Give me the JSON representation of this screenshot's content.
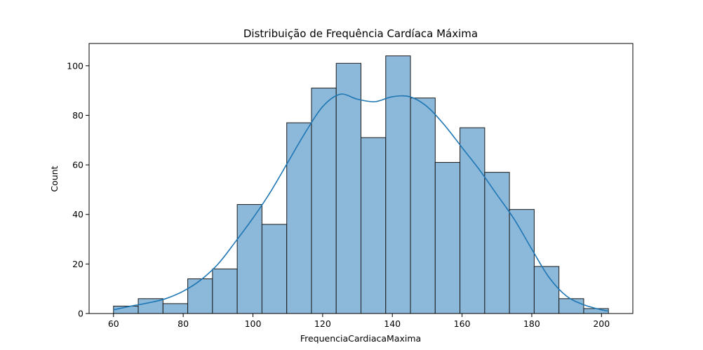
{
  "chart_data": {
    "type": "bar",
    "subtype": "histogram",
    "title": "Distribuição de Frequência Cardíaca Máxima",
    "xlabel": "FrequenciaCardiacaMaxima",
    "ylabel": "Count",
    "xlim": [
      53,
      209
    ],
    "ylim": [
      0,
      109
    ],
    "xticks": [
      60,
      80,
      100,
      120,
      140,
      160,
      180,
      200
    ],
    "yticks": [
      0,
      20,
      40,
      60,
      80,
      100
    ],
    "bin_edges": [
      60,
      67.1,
      74.2,
      81.3,
      88.4,
      95.5,
      102.6,
      109.7,
      116.8,
      123.9,
      131,
      138.1,
      145.2,
      152.3,
      159.4,
      166.5,
      173.6,
      180.7,
      187.8,
      194.9,
      202
    ],
    "counts": [
      3,
      6,
      4,
      14,
      18,
      44,
      36,
      77,
      91,
      101,
      71,
      104,
      87,
      61,
      75,
      57,
      42,
      19,
      6,
      2
    ],
    "kde": {
      "x": [
        60,
        65,
        70,
        75,
        80,
        85,
        90,
        95,
        100,
        105,
        110,
        115,
        120,
        125,
        130,
        135,
        140,
        145,
        150,
        155,
        160,
        165,
        170,
        175,
        180,
        185,
        190,
        195,
        200,
        202
      ],
      "y": [
        1.5,
        3.0,
        4.3,
        6.0,
        9.0,
        13.5,
        20.0,
        29.0,
        38.5,
        49.0,
        61.0,
        73.0,
        83.5,
        88.5,
        86.5,
        85.5,
        87.5,
        87.5,
        83.5,
        76.0,
        67.0,
        58.0,
        48.0,
        38.0,
        26.0,
        14.5,
        7.0,
        3.5,
        1.5,
        1.0
      ]
    },
    "colors": {
      "bar_fill": "#8cb8da",
      "bar_edge": "#1a1a1a",
      "kde_line": "#1f77b4"
    },
    "grid": false,
    "legend": "none"
  }
}
